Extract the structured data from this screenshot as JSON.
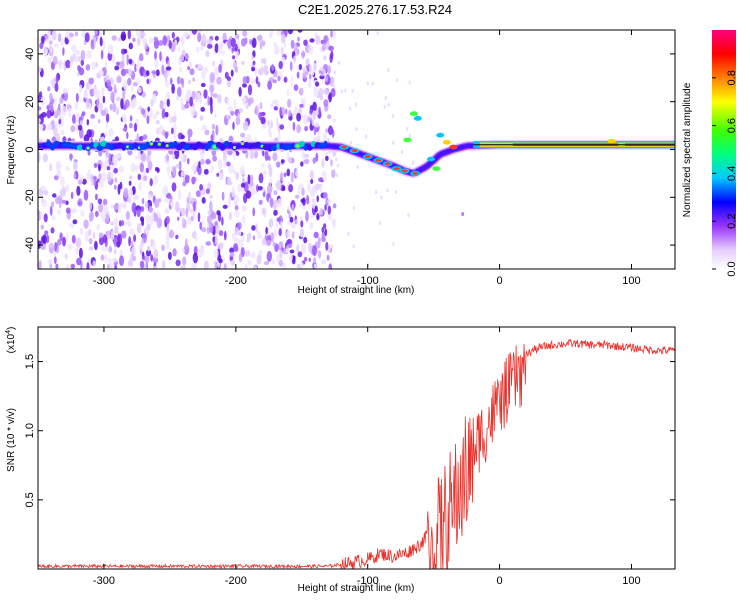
{
  "title": "C2E1.2025.276.17.53.R24",
  "chart_data": [
    {
      "type": "heatmap",
      "name": "spectrogram",
      "xlabel": "Height of straight line (km)",
      "ylabel": "Frequency (Hz)",
      "xlim": [
        -350,
        133
      ],
      "ylim": [
        -50,
        50
      ],
      "xticks": [
        -300,
        -200,
        -100,
        0,
        100
      ],
      "yticks": [
        -40,
        -20,
        0,
        20,
        40
      ],
      "xtick_labels": [
        "-300",
        "-200",
        "-100",
        "0",
        "100"
      ],
      "ytick_labels": [
        "-40",
        "-20",
        "0",
        "20",
        "40"
      ],
      "colorbar": {
        "label": "Normalized spectral amplitude",
        "range": [
          0,
          1
        ],
        "ticks": [
          0.0,
          0.2,
          0.4,
          0.6,
          0.8
        ],
        "tick_labels": [
          "0.0",
          "0.2",
          "0.4",
          "0.6",
          "0.8"
        ]
      },
      "noise_region_km": [
        -350,
        -125
      ],
      "signal_track": [
        {
          "x": -350,
          "f": 1.5
        },
        {
          "x": -130,
          "f": 1.5
        },
        {
          "x": -120,
          "f": 1.0
        },
        {
          "x": -110,
          "f": -1.0
        },
        {
          "x": -100,
          "f": -3.0
        },
        {
          "x": -90,
          "f": -5.0
        },
        {
          "x": -80,
          "f": -7.0
        },
        {
          "x": -72,
          "f": -9.0
        },
        {
          "x": -65,
          "f": -10.0
        },
        {
          "x": -55,
          "f": -7.0
        },
        {
          "x": -45,
          "f": -2.0
        },
        {
          "x": -35,
          "f": 0.0
        },
        {
          "x": -25,
          "f": 1.5
        },
        {
          "x": 0,
          "f": 2.0
        },
        {
          "x": 133,
          "f": 2.0
        }
      ]
    },
    {
      "type": "line",
      "name": "snr",
      "xlabel": "Height of straight line (km)",
      "ylabel": "SNR (10 * v/v)",
      "scale_label": "(x10",
      "scale_exponent": "4",
      "scale_suffix": ")",
      "xlim": [
        -350,
        133
      ],
      "ylim": [
        0,
        1.75
      ],
      "xticks": [
        -300,
        -200,
        -100,
        0,
        100
      ],
      "yticks": [
        0.5,
        1.0,
        1.5
      ],
      "xtick_labels": [
        "-300",
        "-200",
        "-100",
        "0",
        "100"
      ],
      "ytick_labels": [
        "0.5",
        "1.0",
        "1.5"
      ],
      "color": "#e8302a",
      "series": [
        {
          "name": "SNR envelope",
          "x": [
            -350,
            -130,
            -115,
            -100,
            -90,
            -80,
            -70,
            -60,
            -50,
            -45,
            -40,
            -35,
            -30,
            -25,
            -20,
            -15,
            -10,
            -5,
            0,
            5,
            10,
            15,
            20,
            25,
            30,
            35,
            40,
            50,
            60,
            70,
            80,
            90,
            100,
            110,
            120,
            133
          ],
          "y": [
            0.02,
            0.02,
            0.04,
            0.07,
            0.11,
            0.09,
            0.12,
            0.18,
            0.3,
            0.45,
            0.55,
            0.65,
            0.75,
            0.88,
            0.97,
            1.05,
            1.12,
            1.22,
            1.3,
            1.38,
            1.45,
            1.5,
            1.55,
            1.58,
            1.6,
            1.61,
            1.62,
            1.63,
            1.63,
            1.62,
            1.62,
            1.61,
            1.6,
            1.59,
            1.58,
            1.58
          ]
        }
      ]
    }
  ]
}
